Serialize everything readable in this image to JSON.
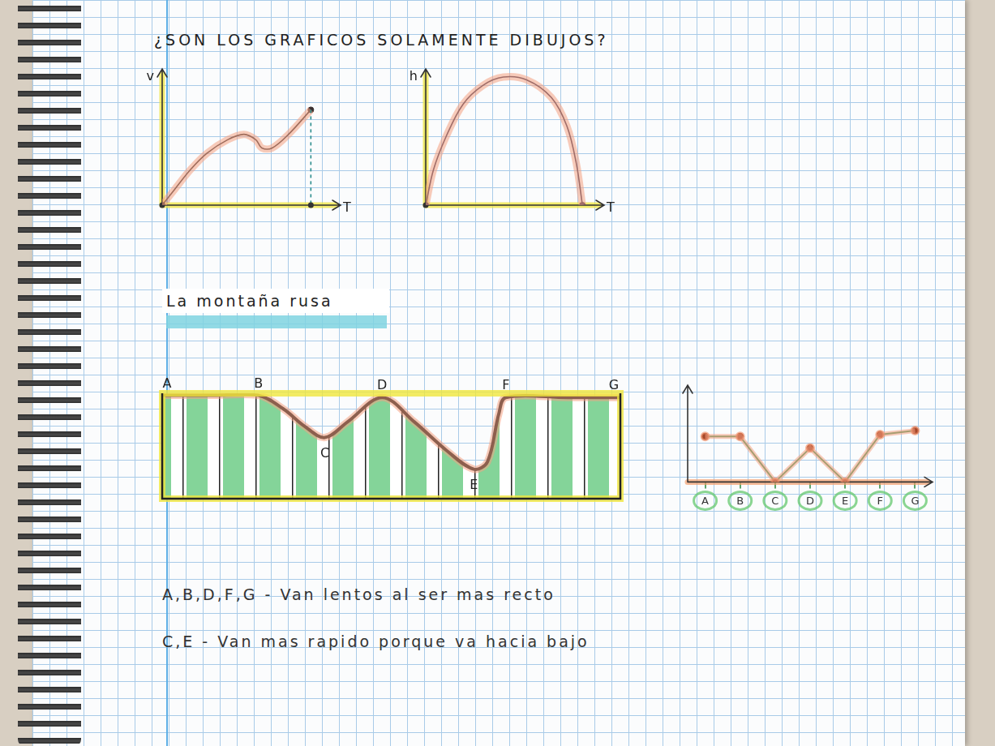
{
  "title": "¿SON LOS GRAFICOS SOLAMENTE DIBUJOS?",
  "section": "La montaña rusa",
  "notes": [
    "A,B,D,F,G - Van lentos al ser mas recto",
    "C,E - Van mas rapido porque va hacia bajo"
  ],
  "chart_data": [
    {
      "type": "line",
      "xlabel": "T",
      "ylabel": "v",
      "x": [
        0,
        0.8,
        1.9,
        3.0,
        4.4,
        5.5,
        6.3,
        6.7,
        7.4,
        8.5,
        10.0
      ],
      "values": [
        0,
        1.1,
        2.6,
        3.8,
        4.8,
        5.2,
        4.8,
        4.2,
        4.2,
        5.2,
        7.0
      ],
      "xlim": [
        0,
        12
      ],
      "ylim": [
        0,
        10
      ],
      "tick_labels": false,
      "color": "#3a2f2f",
      "marker": "endpoints"
    },
    {
      "type": "line",
      "xlabel": "T",
      "ylabel": "h",
      "x": [
        0,
        0.5,
        1.3,
        2.4,
        3.7,
        5.0,
        6.5,
        8.1,
        9.1,
        9.7,
        10.1
      ],
      "values": [
        0,
        2.6,
        5.0,
        7.4,
        8.8,
        9.4,
        9.2,
        7.9,
        5.8,
        3.1,
        0
      ],
      "xlim": [
        0,
        11.5
      ],
      "ylim": [
        0,
        10
      ],
      "tick_labels": false,
      "color": "#3a2f4a",
      "marker": "endpoints"
    },
    {
      "type": "area",
      "x": [
        0,
        2.1,
        4.2,
        5.3,
        6.2,
        7.1,
        8.1,
        9.6,
        11.0,
        12.4,
        13.6,
        14.2,
        14.7,
        15.0,
        17.7,
        20.0
      ],
      "values": [
        9.8,
        9.8,
        9.8,
        8.5,
        6.9,
        5.8,
        7.3,
        9.6,
        7.3,
        4.6,
        2.8,
        3.5,
        8.1,
        9.6,
        9.6,
        9.6
      ],
      "point_labels": [
        "A",
        null,
        "B",
        null,
        null,
        "C",
        null,
        "D",
        null,
        null,
        "E",
        null,
        null,
        "F",
        null,
        "G"
      ],
      "xlim": [
        0,
        20
      ],
      "ylim": [
        0,
        10
      ],
      "tick_labels": false,
      "color": "#111111",
      "marker": "none"
    },
    {
      "type": "line",
      "categories": [
        "A",
        "B",
        "C",
        "D",
        "E",
        "F",
        "G"
      ],
      "values": [
        4.7,
        4.7,
        0,
        3.5,
        0,
        4.9,
        5.3
      ],
      "ylim": [
        0,
        10
      ],
      "tick_labels": "x",
      "color": "#4d9a5b",
      "marker": "circle"
    }
  ]
}
